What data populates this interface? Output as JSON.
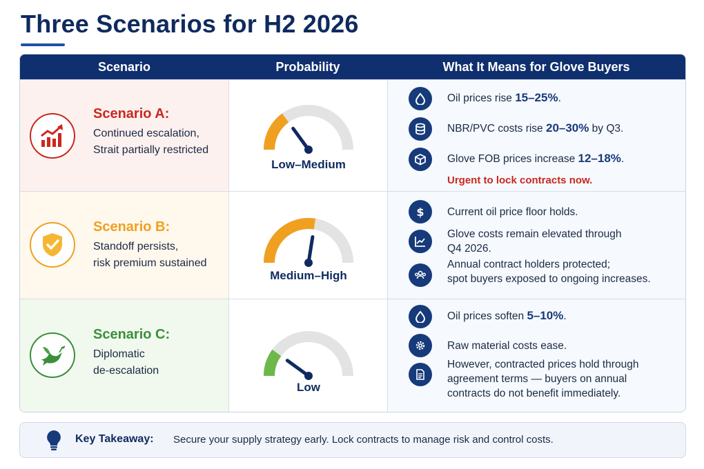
{
  "title": "Three Scenarios for H2 2026",
  "headers": {
    "scenario": "Scenario",
    "probability": "Probability",
    "meaning": "What It Means for Glove Buyers"
  },
  "scenarios": [
    {
      "name": "Scenario A:",
      "desc_line1": "Continued escalation,",
      "desc_line2": "Strait partially restricted",
      "probability_label": "Low–Medium",
      "probability_level": 0.3,
      "color": "#c9281f",
      "icon": "rising-chart-icon",
      "items": [
        {
          "icon": "oil-drop-icon",
          "pre": "Oil prices rise ",
          "hl": "15–25%",
          "post": "."
        },
        {
          "icon": "database-icon",
          "pre": "NBR/PVC costs rise ",
          "hl": "20–30%",
          "post": " by Q3."
        },
        {
          "icon": "box-icon",
          "pre": "Glove FOB prices increase ",
          "hl": "12–18%",
          "post": "."
        }
      ],
      "urgent": "Urgent to lock contracts now."
    },
    {
      "name": "Scenario B:",
      "desc_line1": "Standoff persists,",
      "desc_line2": "risk premium sustained",
      "probability_label": "Medium–High",
      "probability_level": 0.55,
      "color": "#f0a020",
      "icon": "shield-check-icon",
      "items": [
        {
          "icon": "dollar-icon",
          "line1": "Current oil price floor holds."
        },
        {
          "icon": "trend-chart-icon",
          "line1": "Glove costs remain elevated through",
          "line2": "Q4 2026."
        },
        {
          "icon": "people-icon",
          "line1": "Annual contract holders protected;",
          "line2": "spot buyers exposed to ongoing increases."
        }
      ]
    },
    {
      "name": "Scenario C:",
      "desc_line1": "Diplomatic",
      "desc_line2": "de-escalation",
      "probability_label": "Low",
      "probability_level": 0.2,
      "color": "#3a8f3a",
      "icon": "dove-icon",
      "items": [
        {
          "icon": "oil-drop-icon",
          "pre": "Oil prices soften ",
          "hl": "5–10%",
          "post": "."
        },
        {
          "icon": "gear-icon",
          "line1": "Raw material costs ease."
        },
        {
          "icon": "document-icon",
          "line1": "However, contracted prices hold through",
          "line2": "agreement terms — buyers on annual",
          "line3": "contracts do not benefit immediately."
        }
      ]
    }
  ],
  "takeaway": {
    "title": "Key Takeaway:",
    "text": "Secure your supply strategy early. Lock contracts to manage risk and control costs.",
    "icon": "lightbulb-icon"
  },
  "colors": {
    "navy": "#0f2f6f",
    "accent": "#163a7a",
    "red": "#c9281f",
    "orange": "#f0a020",
    "green": "#3a8f3a"
  }
}
